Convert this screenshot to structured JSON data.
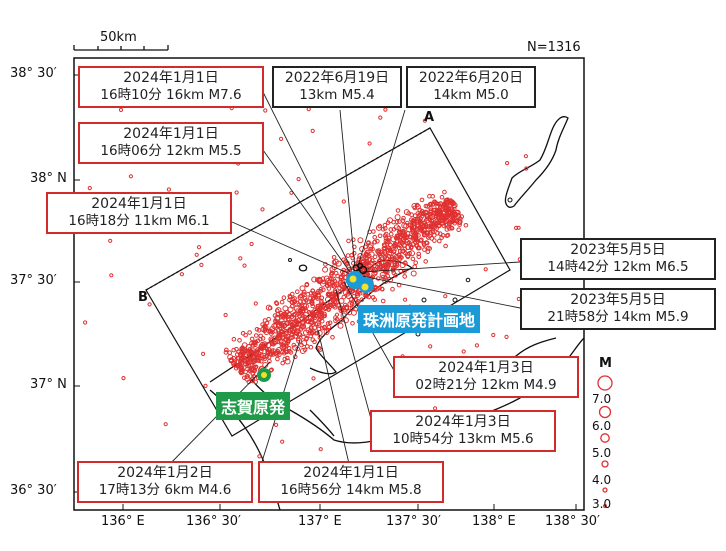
{
  "header": {
    "scale_label": "50km",
    "count_label": "N=1316"
  },
  "axes": {
    "lat_labels": [
      "38° 30′",
      "38° N",
      "37° 30′",
      "37° N",
      "36° 30′"
    ],
    "lon_labels": [
      "136° E",
      "136° 30′",
      "137° E",
      "137° 30′",
      "138° E",
      "138° 30′"
    ]
  },
  "profile": {
    "a_label": "A",
    "b_label": "B"
  },
  "sites": {
    "suzu": {
      "label": "珠洲原発計画地",
      "color": "#1a9ad6"
    },
    "shika": {
      "label": "志賀原発",
      "color": "#1f9a48"
    }
  },
  "legend": {
    "title": "M",
    "values": [
      "7.0",
      "6.0",
      "5.0",
      "4.0",
      "3.0"
    ]
  },
  "colors": {
    "quake": "#e03030",
    "black_event": "#111111",
    "label_red": "#d42a2a"
  },
  "events": [
    {
      "date": "2024年1月1日",
      "detail": "16時10分  16km   M7.6",
      "box": "red"
    },
    {
      "date": "2024年1月1日",
      "detail": "16時06分  12km   M5.5",
      "box": "red"
    },
    {
      "date": "2024年1月1日",
      "detail": "16時18分  11km   M6.1",
      "box": "red"
    },
    {
      "date": "2022年6月19日",
      "detail": "13km   M5.4",
      "box": "black"
    },
    {
      "date": "2022年6月20日",
      "detail": "14km   M5.0",
      "box": "black"
    },
    {
      "date": "2023年5月5日",
      "detail": "14時42分  12km   M6.5",
      "box": "black"
    },
    {
      "date": "2023年5月5日",
      "detail": "21時58分  14km   M5.9",
      "box": "black"
    },
    {
      "date": "2024年1月3日",
      "detail": "02時21分  12km   M4.9",
      "box": "red"
    },
    {
      "date": "2024年1月3日",
      "detail": "10時54分  13km   M5.6",
      "box": "red"
    },
    {
      "date": "2024年1月2日",
      "detail": "17時13分  6km   M4.6",
      "box": "red"
    },
    {
      "date": "2024年1月1日",
      "detail": "16時56分  14km   M5.8",
      "box": "red"
    }
  ]
}
